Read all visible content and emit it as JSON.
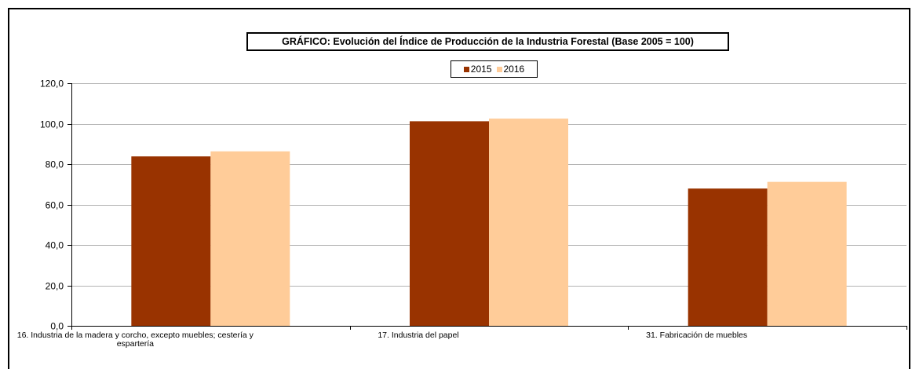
{
  "chart_data": {
    "type": "bar",
    "title": "GRÁFICO: Evolución del Índice de Producción de la Industria Forestal (Base 2005 = 100)",
    "categories": [
      [
        "16. Industria de la madera y corcho, excepto  muebles; cestería y",
        "espartería"
      ],
      [
        "17. Industria del papel"
      ],
      [
        "31. Fabricación de muebles"
      ]
    ],
    "series": [
      {
        "name": "2015",
        "color": "#993300",
        "values": [
          83.8,
          101.2,
          67.9
        ]
      },
      {
        "name": "2016",
        "color": "#FFCC99",
        "values": [
          86.3,
          102.5,
          71.2
        ]
      }
    ],
    "ylim": [
      0,
      120
    ],
    "yticks": [
      "0,0",
      "20,0",
      "40,0",
      "60,0",
      "80,0",
      "100,0",
      "120,0"
    ],
    "xlabel": "",
    "ylabel": "",
    "grid": true,
    "legend_position": "top-center"
  }
}
